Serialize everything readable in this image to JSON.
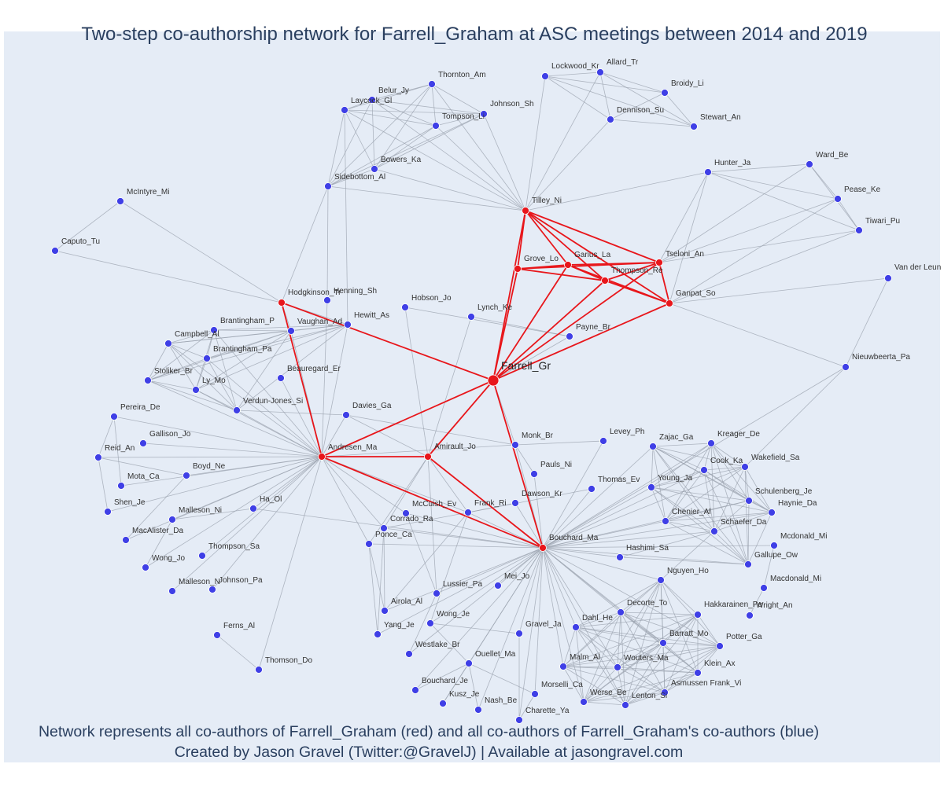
{
  "title": "Two-step co-authorship network for Farrell_Graham at ASC meetings between 2014 and 2019",
  "caption_line1": "Network represents all co-authors of Farrell_Graham (red) and all co-authors of Farrell_Graham's co-authors (blue)",
  "caption_line2": "Created by Jason Gravel (Twitter:@GravelJ) | Available at jasongravel.com",
  "colors": {
    "red": "#e8161b",
    "blue": "#3f3fe6",
    "red_edge": "#e8161b",
    "grey_edge": "#9aa1ad"
  },
  "network": {
    "center": "Farrell_Gr",
    "red": [
      "Tilley_Ni",
      "Grove_Lo",
      "Garius_La",
      "Thompson_Re",
      "Tseloni_An",
      "Ganpat_So",
      "Hodgkinson_Tr",
      "Andresen_Ma",
      "Amirault_Jo",
      "Bouchard_Ma"
    ],
    "blue": [
      "Thornton_Am",
      "Belur_Jy",
      "Laycock_Gl",
      "Johnson_Sh",
      "Tompson_Li",
      "Bowers_Ka",
      "Sidebottom_Al",
      "Lockwood_Kr",
      "Allard_Tr",
      "Broidy_Li",
      "Dennison_Su",
      "Stewart_An",
      "Hunter_Ja",
      "Ward_Be",
      "Pease_Ke",
      "Tiwari_Pu",
      "Van der Leun",
      "Nieuwbeerta_Pa",
      "McIntyre_Mi",
      "Caputo_Tu",
      "Hobson_Jo",
      "Lynch_Ke",
      "Payne_Br",
      "Henning_Sh",
      "Hewitt_As",
      "Vaughan_Ad",
      "Brantingham_P",
      "Campbell_Al",
      "Brantingham_Pa",
      "Stoliker_Br",
      "Ly_Mo",
      "Beauregard_Er",
      "Verdun-Jones_Si",
      "Davies_Ga",
      "Pereira_De",
      "Gallison_Jo",
      "Reid_An",
      "Boyd_Ne",
      "Mota_Ca",
      "Shen_Je",
      "Malleson_Ni",
      "MacAlister_Da",
      "Ha_Ol",
      "Thompson_Sa",
      "Wong_Jo",
      "Malleson_N",
      "Johnson_Pa",
      "Ferns_Al",
      "Thomson_Do",
      "Monk_Br",
      "Levey_Ph",
      "Pauls_Ni",
      "Thomas_Ev",
      "McCuish_Ev",
      "Frank_Ri",
      "Dawson_Kr",
      "Corrado_Ra",
      "Ponce_Ca",
      "Lussier_Pa",
      "Mei_Jo",
      "Airola_Al",
      "Wong_Je",
      "Yang_Je",
      "Gravel_Ja",
      "Westlake_Br",
      "Ouellet_Ma",
      "Bouchard_Je",
      "Kusz_Je",
      "Nash_Be",
      "Morselli_Ca",
      "Charette_Ya",
      "Zajac_Ga",
      "Kreager_De",
      "Cook_Ka",
      "Wakefield_Sa",
      "Young_Ja",
      "Schulenberg_Je",
      "Haynie_Da",
      "Chenier_Al",
      "Schaefer_Da",
      "Mcdonald_Mi",
      "Hashimi_Sa",
      "Gallupe_Ow",
      "Nguyen_Ho",
      "Macdonald_Mi",
      "Decorte_To",
      "Hakkarainen_Pe",
      "Wright_An",
      "Dahl_He",
      "Barratt_Mo",
      "Potter_Ga",
      "Malm_Al",
      "Wouters_Ma",
      "Klein_Ax",
      "Werse_Be",
      "Lenton_Si",
      "Asmussen Frank_Vi"
    ]
  }
}
